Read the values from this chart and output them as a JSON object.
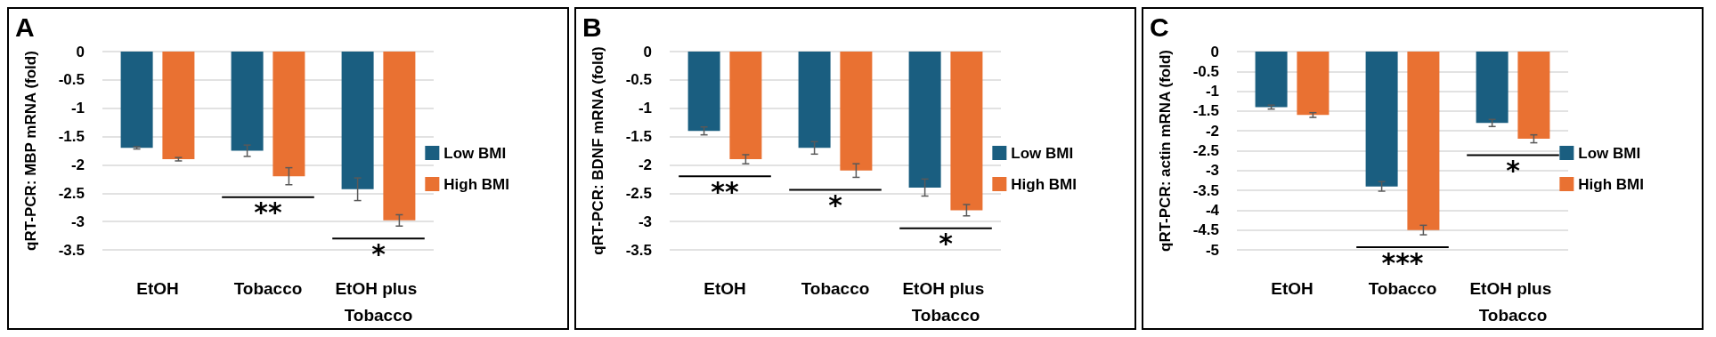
{
  "chart_data": [
    {
      "type": "bar",
      "title": "A",
      "ylabel": "qRT-PCR: MBP mRNA (fold)",
      "categories": [
        "EtOH",
        "Tobacco",
        "EtOH plus Tobacco"
      ],
      "series": [
        {
          "name": "Low BMI",
          "color": "#1a5e80",
          "values": [
            -1.7,
            -1.75,
            -2.43
          ],
          "errors": [
            0.02,
            0.1,
            0.2
          ]
        },
        {
          "name": "High BMI",
          "color": "#e97132",
          "values": [
            -1.9,
            -2.2,
            -2.98
          ],
          "errors": [
            0.03,
            0.15,
            0.1
          ]
        }
      ],
      "ylim": [
        -3.5,
        0
      ],
      "yticks": [
        -3.5,
        -3,
        -2.5,
        -2,
        -1.5,
        -1,
        -0.5,
        0
      ],
      "grid": "y",
      "legend": "right",
      "annotations": [
        "**",
        "*"
      ]
    },
    {
      "type": "bar",
      "title": "B",
      "ylabel": "qRT-PCR: BDNF mRNA (fold)",
      "categories": [
        "EtOH",
        "Tobacco",
        "EtOH plus Tobacco"
      ],
      "series": [
        {
          "name": "Low BMI",
          "color": "#1a5e80",
          "values": [
            -1.4,
            -1.7,
            -2.4
          ],
          "errors": [
            0.07,
            0.11,
            0.15
          ]
        },
        {
          "name": "High BMI",
          "color": "#e97132",
          "values": [
            -1.9,
            -2.1,
            -2.8
          ],
          "errors": [
            0.08,
            0.12,
            0.1
          ]
        }
      ],
      "ylim": [
        -3.5,
        0
      ],
      "yticks": [
        -3.5,
        -3,
        -2.5,
        -2,
        -1.5,
        -1,
        -0.5,
        0
      ],
      "grid": "y",
      "legend": "right",
      "annotations": [
        "**",
        "*",
        "*"
      ]
    },
    {
      "type": "bar",
      "title": "C",
      "ylabel": "qRT-PCR: actin mRNA (fold)",
      "categories": [
        "EtOH",
        "Tobacco",
        "EtOH plus Tobacco"
      ],
      "series": [
        {
          "name": "Low BMI",
          "color": "#1a5e80",
          "values": [
            -1.4,
            -3.4,
            -1.8
          ],
          "errors": [
            0.05,
            0.12,
            0.09
          ]
        },
        {
          "name": "High BMI",
          "color": "#e97132",
          "values": [
            -1.6,
            -4.5,
            -2.2
          ],
          "errors": [
            0.06,
            0.12,
            0.1
          ]
        }
      ],
      "ylim": [
        -5,
        0
      ],
      "yticks": [
        -5,
        -4.5,
        -4,
        -3.5,
        -3,
        -2.5,
        -2,
        -1.5,
        -1,
        -0.5,
        0
      ],
      "grid": "y",
      "legend": "right",
      "annotations": [
        "***",
        "*"
      ]
    }
  ]
}
